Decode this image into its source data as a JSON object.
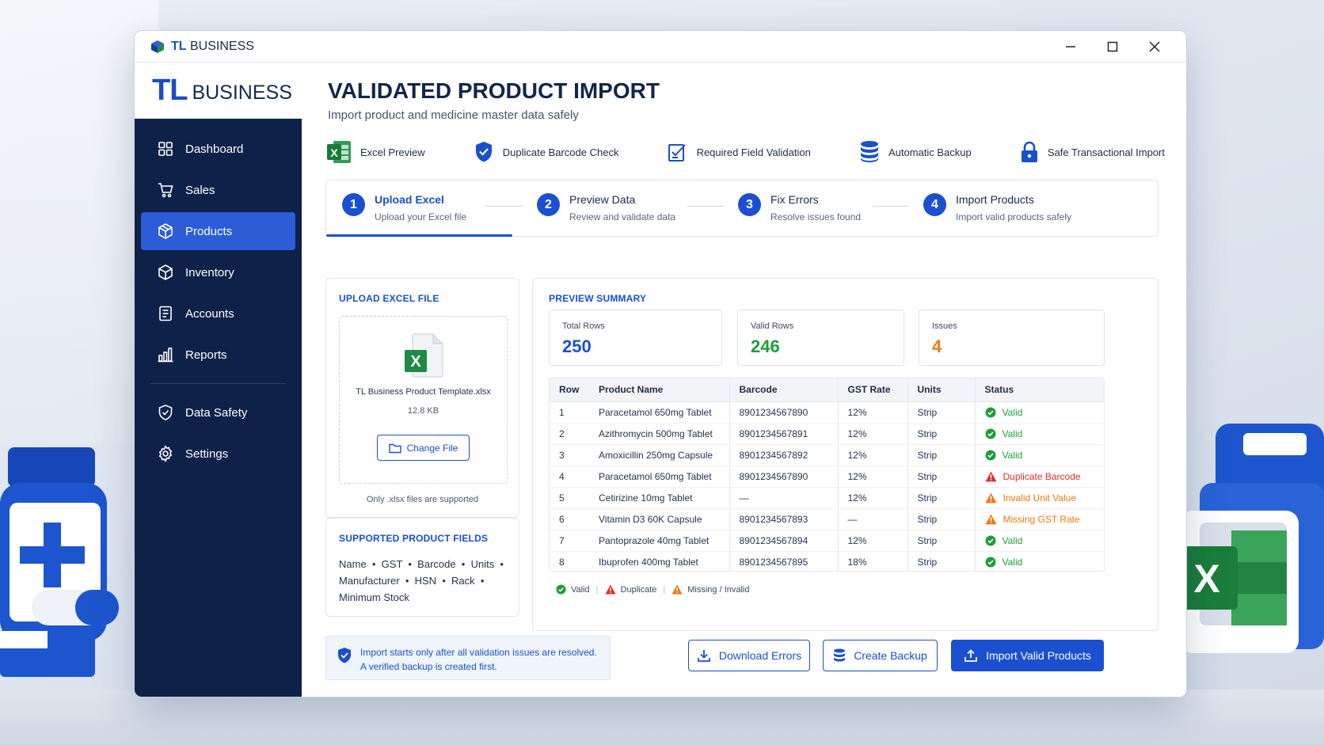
{
  "window": {
    "title_brand": "TL",
    "title_rest": " BUSINESS"
  },
  "brand": {
    "tl": "TL",
    "business": "BUSINESS"
  },
  "sidebar": {
    "items": [
      {
        "label": "Dashboard",
        "icon": "dashboard-icon"
      },
      {
        "label": "Sales",
        "icon": "cart-icon"
      },
      {
        "label": "Products",
        "icon": "box-icon",
        "active": true
      },
      {
        "label": "Inventory",
        "icon": "inventory-icon"
      },
      {
        "label": "Accounts",
        "icon": "accounts-icon"
      },
      {
        "label": "Reports",
        "icon": "reports-icon"
      }
    ],
    "bottom_items": [
      {
        "label": "Data Safety",
        "icon": "shield-check-icon"
      },
      {
        "label": "Settings",
        "icon": "gear-icon"
      }
    ]
  },
  "page": {
    "title": "VALIDATED PRODUCT IMPORT",
    "subtitle": "Import product and medicine master data safely"
  },
  "features": [
    {
      "label": "Excel Preview",
      "icon": "excel-icon"
    },
    {
      "label": "Duplicate Barcode Check",
      "icon": "shield-icon"
    },
    {
      "label": "Required Field Validation",
      "icon": "checklist-icon"
    },
    {
      "label": "Automatic Backup",
      "icon": "database-icon"
    },
    {
      "label": "Safe Transactional Import",
      "icon": "lock-icon"
    }
  ],
  "steps": [
    {
      "num": "1",
      "title": "Upload Excel",
      "desc": "Upload your Excel file"
    },
    {
      "num": "2",
      "title": "Preview Data",
      "desc": "Review and validate data"
    },
    {
      "num": "3",
      "title": "Fix Errors",
      "desc": "Resolve issues found"
    },
    {
      "num": "4",
      "title": "Import Products",
      "desc": "Import valid products safely"
    }
  ],
  "upload": {
    "title": "UPLOAD EXCEL FILE",
    "file_name": "TL Business Product Template.xlsx",
    "file_size": "12.8 KB",
    "change_label": "Change File",
    "note": "Only .xlsx files are supported"
  },
  "fields": {
    "title": "SUPPORTED PRODUCT FIELDS",
    "line1": "Name  •  GST  •  Barcode  •  Units  •",
    "line2": "Manufacturer  •  HSN  •  Rack  •",
    "line3": "Minimum Stock"
  },
  "preview": {
    "title": "PREVIEW SUMMARY",
    "stats": [
      {
        "label": "Total Rows",
        "value": "250",
        "color": "#1a4fd0"
      },
      {
        "label": "Valid Rows",
        "value": "246",
        "color": "#1f9d3a"
      },
      {
        "label": "Issues",
        "value": "4",
        "color": "#ec7a12"
      }
    ],
    "columns": [
      "Row",
      "Product Name",
      "Barcode",
      "GST Rate",
      "Units",
      "Status"
    ],
    "rows": [
      {
        "row": "1",
        "name": "Paracetamol 650mg Tablet",
        "barcode": "8901234567890",
        "gst": "12%",
        "units": "Strip",
        "status": "Valid",
        "kind": "valid"
      },
      {
        "row": "2",
        "name": "Azithromycin 500mg Tablet",
        "barcode": "8901234567891",
        "gst": "12%",
        "units": "Strip",
        "status": "Valid",
        "kind": "valid"
      },
      {
        "row": "3",
        "name": "Amoxicillin 250mg Capsule",
        "barcode": "8901234567892",
        "gst": "12%",
        "units": "Strip",
        "status": "Valid",
        "kind": "valid"
      },
      {
        "row": "4",
        "name": "Paracetamol 650mg Tablet",
        "barcode": "8901234567890",
        "gst": "12%",
        "units": "Strip",
        "status": "Duplicate Barcode",
        "kind": "duplicate"
      },
      {
        "row": "5",
        "name": "Cetirizine 10mg Tablet",
        "barcode": "—",
        "gst": "12%",
        "units": "Strip",
        "status": "Invalid Unit Value",
        "kind": "warning"
      },
      {
        "row": "6",
        "name": "Vitamin D3 60K Capsule",
        "barcode": "8901234567893",
        "gst": "—",
        "units": "Strip",
        "status": "Missing GST Rate",
        "kind": "warning"
      },
      {
        "row": "7",
        "name": "Pantoprazole 40mg Tablet",
        "barcode": "8901234567894",
        "gst": "12%",
        "units": "Strip",
        "status": "Valid",
        "kind": "valid"
      },
      {
        "row": "8",
        "name": "Ibuprofen 400mg Tablet",
        "barcode": "8901234567895",
        "gst": "18%",
        "units": "Strip",
        "status": "Valid",
        "kind": "valid"
      }
    ],
    "legend": {
      "valid": "Valid",
      "duplicate": "Duplicate",
      "missing": "Missing / Invalid"
    }
  },
  "notice": {
    "line1": "Import starts only after all validation issues are resolved.",
    "line2": "A verified backup is created first."
  },
  "actions": {
    "download": "Download Errors",
    "backup": "Create Backup",
    "import": "Import Valid Products"
  },
  "colors": {
    "primary": "#1a4fd0",
    "sidebar": "#0e2149",
    "valid": "#1f9d3a",
    "duplicate": "#e0302c",
    "warning": "#ec7a12"
  }
}
